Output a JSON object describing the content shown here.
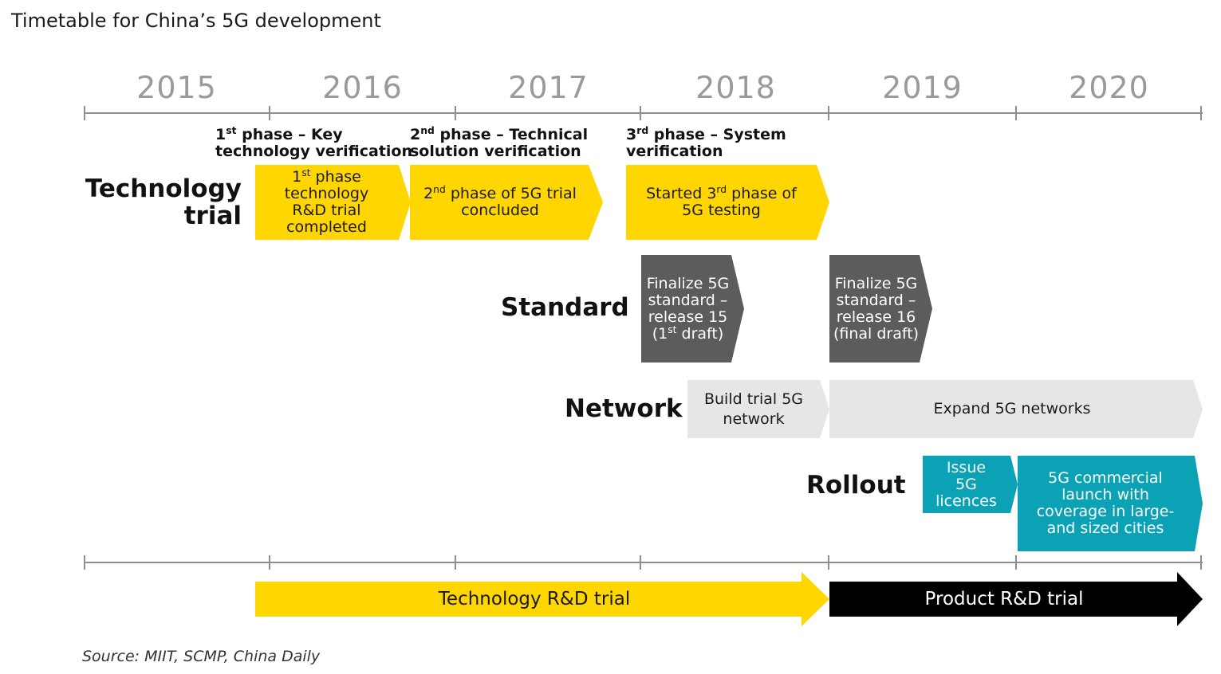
{
  "title": "Timetable for China’s 5G development",
  "years": [
    "2015",
    "2016",
    "2017",
    "2018",
    "2019",
    "2020"
  ],
  "phases": [
    {
      "num": "1",
      "sup": "st",
      "rest": " phase – Key",
      "line2": "technology verification"
    },
    {
      "num": "2",
      "sup": "nd",
      "rest": " phase – Technical",
      "line2": "solution verification"
    },
    {
      "num": "3",
      "sup": "rd",
      "rest": " phase – System",
      "line2": "verification"
    }
  ],
  "row_labels": {
    "technology_trial": [
      "Technology",
      "trial"
    ],
    "standard": "Standard",
    "network": "Network",
    "rollout": "Rollout"
  },
  "technology_trial": {
    "box1": {
      "a": "1",
      "sup": "st",
      "b": " phase",
      "c": "technology",
      "d": "R&D trial",
      "e": "completed"
    },
    "box2": {
      "a": "2",
      "sup": "nd",
      "b": " phase of 5G trial",
      "c": "concluded"
    },
    "box3": {
      "a": "Started 3",
      "sup": "rd",
      "b": " phase of",
      "c": "5G testing"
    }
  },
  "standard": {
    "box1": {
      "l1": "Finalize 5G",
      "l2": "standard –",
      "l3": "release 15",
      "l4a": "(1",
      "sup": "st",
      "l4b": " draft)"
    },
    "box2": {
      "l1": "Finalize 5G",
      "l2": "standard –",
      "l3": "release 16",
      "l4": "(final draft)"
    }
  },
  "network": {
    "box1": [
      "Build trial 5G",
      "network"
    ],
    "box2": "Expand 5G networks"
  },
  "rollout": {
    "box1": [
      "Issue",
      "5G",
      "licences"
    ],
    "box2": [
      "5G commercial",
      "launch with",
      "coverage in large-",
      "and sized cities"
    ]
  },
  "bottom": {
    "technology_rd": "Technology R&D trial",
    "product_rd": "Product R&D trial"
  },
  "source": "Source: MIIT, SCMP, China Daily",
  "colors": {
    "yellow": "#ffd600",
    "dark_gray": "#5a5c5e",
    "light_gray": "#e6e6e6",
    "teal": "#0aa2b4",
    "black": "#000000",
    "axis": "#8f8f8f",
    "year_text": "#9a9a9a"
  }
}
